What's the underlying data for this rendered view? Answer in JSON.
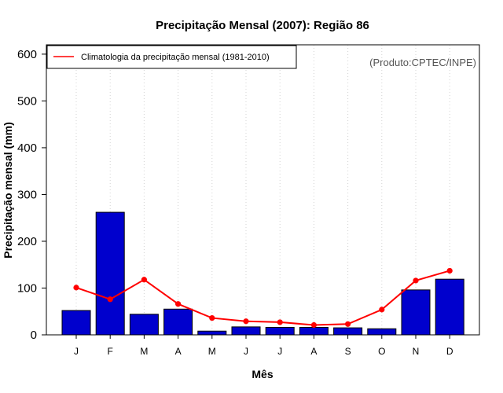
{
  "chart_data": {
    "type": "bar",
    "title": "Precipitação Mensal (2007): Região 86",
    "xlabel": "Mês",
    "ylabel": "Precipitação mensal (mm)",
    "categories": [
      "J",
      "F",
      "M",
      "A",
      "M",
      "J",
      "J",
      "A",
      "S",
      "O",
      "N",
      "D"
    ],
    "ylim": [
      0,
      620
    ],
    "yticks": [
      0,
      100,
      200,
      300,
      400,
      500,
      600
    ],
    "grid": "vertical dotted",
    "legend_position": "top-left",
    "series": [
      {
        "name": "Precipitação mensal (2007)",
        "type": "bar",
        "color": "#0000CD",
        "values": [
          52,
          262,
          44,
          55,
          8,
          17,
          16,
          16,
          15,
          13,
          96,
          119
        ]
      },
      {
        "name": "Climatologia da precipitação mensal (1981-2010)",
        "type": "line",
        "color": "#FF0000",
        "values": [
          101,
          76,
          118,
          66,
          36,
          29,
          27,
          21,
          23,
          54,
          116,
          137
        ]
      }
    ],
    "source_note": "(Produto:CPTEC/INPE)"
  }
}
